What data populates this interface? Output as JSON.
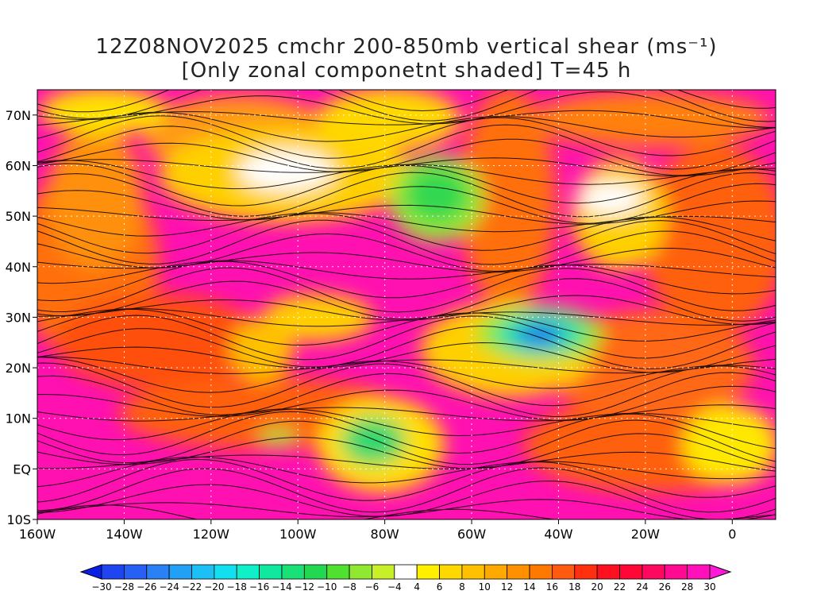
{
  "title": {
    "line1": "12Z08NOV2025 cmchr 200-850mb vertical shear (ms⁻¹)",
    "line2": "[Only zonal componetnt shaded] T=45 h"
  },
  "map": {
    "lat_labels": [
      "70N",
      "60N",
      "50N",
      "40N",
      "30N",
      "20N",
      "10N",
      "EQ",
      "10S"
    ],
    "lon_labels": [
      "160W",
      "140W",
      "120W",
      "100W",
      "80W",
      "60W",
      "40W",
      "20W",
      "0"
    ],
    "lon_range": [
      -160,
      10
    ],
    "lat_range": [
      -10,
      75
    ],
    "grid": true
  },
  "colorbar": {
    "labels": [
      "-30",
      "-28",
      "-26",
      "-24",
      "-22",
      "-20",
      "-18",
      "-16",
      "-14",
      "-12",
      "-10",
      "-8",
      "-6",
      "-4",
      "4",
      "6",
      "8",
      "10",
      "12",
      "14",
      "16",
      "18",
      "20",
      "22",
      "24",
      "26",
      "28",
      "30"
    ],
    "colors": [
      "#0b1ee8",
      "#1e45f0",
      "#2860f5",
      "#2a80f5",
      "#22a0f5",
      "#1cc0f5",
      "#10e0f0",
      "#0ff0c8",
      "#10e8a0",
      "#1ae078",
      "#22d850",
      "#50e030",
      "#90e830",
      "#c8f028",
      "#ffffff",
      "#fff000",
      "#ffd800",
      "#ffc000",
      "#ffa800",
      "#ff9000",
      "#ff7800",
      "#ff5a10",
      "#ff3010",
      "#ff1020",
      "#ff0838",
      "#ff0860",
      "#ff0a90",
      "#ff10b8",
      "#ff18d8"
    ]
  }
}
